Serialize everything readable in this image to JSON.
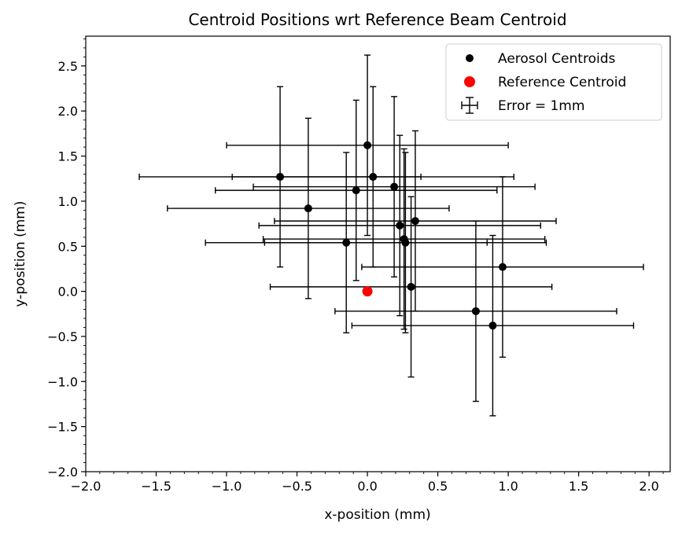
{
  "chart_data": {
    "type": "scatter",
    "title": "Centroid Positions wrt Reference Beam Centroid",
    "xlabel": "x-position (mm)",
    "ylabel": "y-position (mm)",
    "xlim": [
      -2.0,
      2.15
    ],
    "ylim": [
      -2.0,
      2.83
    ],
    "xticks": [
      -2.0,
      -1.5,
      -1.0,
      -0.5,
      0.0,
      0.5,
      1.0,
      1.5,
      2.0
    ],
    "yticks": [
      -2.0,
      -1.5,
      -1.0,
      -0.5,
      0.0,
      0.5,
      1.0,
      1.5,
      2.0,
      2.5
    ],
    "xtick_labels": [
      "−2.0",
      "−1.5",
      "−1.0",
      "−0.5",
      "0.0",
      "0.5",
      "1.0",
      "1.5",
      "2.0"
    ],
    "ytick_labels": [
      "−2.0",
      "−1.5",
      "−1.0",
      "−0.5",
      "0.0",
      "0.5",
      "1.0",
      "1.5",
      "2.0",
      "2.5"
    ],
    "grid": false,
    "legend_position": "top-right",
    "series": [
      {
        "name": "Aerosol Centroids",
        "color": "#000000",
        "error": 1.0,
        "points": [
          {
            "x": -0.62,
            "y": 1.27
          },
          {
            "x": 0.0,
            "y": 1.62
          },
          {
            "x": 0.04,
            "y": 1.27
          },
          {
            "x": -0.08,
            "y": 1.12
          },
          {
            "x": 0.19,
            "y": 1.16
          },
          {
            "x": -0.42,
            "y": 0.92
          },
          {
            "x": 0.23,
            "y": 0.73
          },
          {
            "x": 0.34,
            "y": 0.78
          },
          {
            "x": 0.26,
            "y": 0.58
          },
          {
            "x": 0.27,
            "y": 0.54
          },
          {
            "x": -0.15,
            "y": 0.54
          },
          {
            "x": 0.96,
            "y": 0.27
          },
          {
            "x": 0.31,
            "y": 0.05
          },
          {
            "x": 0.77,
            "y": -0.22
          },
          {
            "x": 0.89,
            "y": -0.38
          }
        ]
      },
      {
        "name": "Reference Centroid",
        "color": "#ff0000",
        "points": [
          {
            "x": 0.0,
            "y": 0.0
          }
        ]
      }
    ],
    "legend_entries": [
      "Aerosol Centroids",
      "Reference Centroid",
      "Error = 1mm"
    ]
  }
}
